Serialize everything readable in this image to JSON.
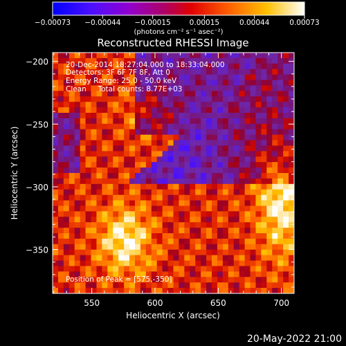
{
  "chart_data": {
    "type": "heatmap",
    "title": "Reconstructed RHESSI Image",
    "xlabel": "Heliocentric X (arcsec)",
    "ylabel": "Heliocentric Y (arcsec)",
    "xlim": [
      519,
      710
    ],
    "ylim": [
      -385,
      -193
    ],
    "x_ticks": [
      550,
      600,
      650,
      700
    ],
    "x_tick_labels": [
      "550",
      "600",
      "650",
      "700"
    ],
    "y_ticks": [
      -200,
      -250,
      -300,
      -350
    ],
    "y_tick_labels": [
      "−200",
      "−250",
      "−300",
      "−350"
    ],
    "colorbar": {
      "ticks": [
        -0.00073,
        -0.00044,
        -0.00015,
        0.00015,
        0.00044,
        0.00073
      ],
      "tick_labels": [
        "−0.00073",
        "−0.00044",
        "−0.00015",
        "0.00015",
        "0.00044",
        "0.00073"
      ],
      "unit_label": "(photons cm⁻² s⁻¹ asec⁻²)",
      "vmin": -0.00073,
      "vmax": 0.00073,
      "colormap": [
        "#0000ff",
        "#5a00ff",
        "#a000c8",
        "#e00000",
        "#ff8000",
        "#ffd200",
        "#ffffff"
      ]
    },
    "annotations": [
      "20-Dec-2014 18:27:04.000 to 18:33:04.000",
      "Detectors: 3F 6F 7F 8F, Att 0",
      "Energy Range: 25.0 - 50.0 keV",
      "Clean     Total counts: 8.77E+03"
    ],
    "peak_annotation": "Position of Peak = [575,-350]",
    "peak": {
      "x": 575,
      "y": -350
    },
    "grid": false
  },
  "footer": {
    "timestamp": "20-May-2022 21:00"
  }
}
